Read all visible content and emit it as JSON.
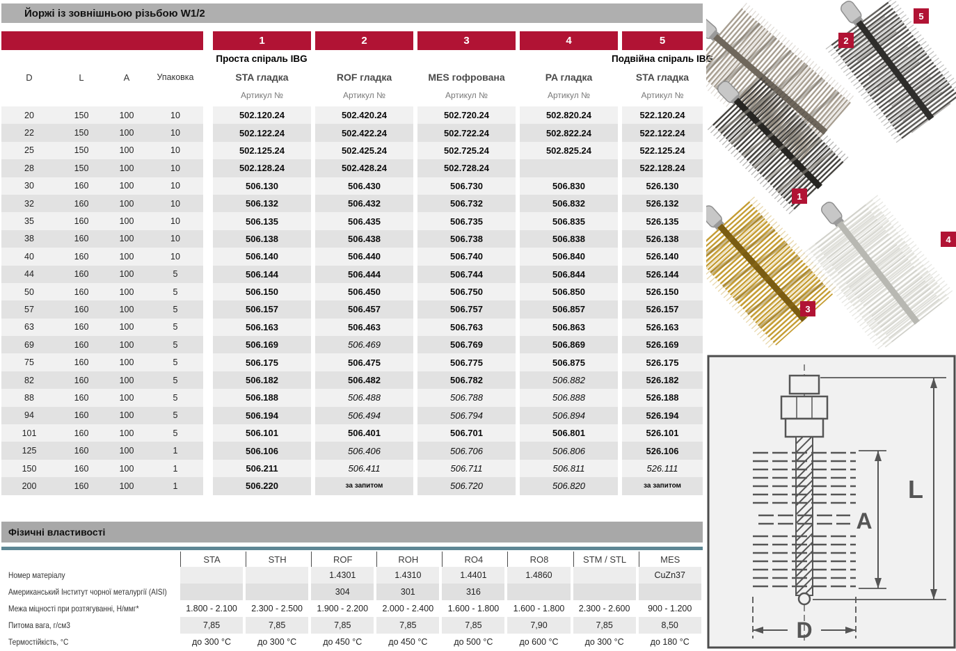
{
  "title": "Йоржі із зовнішньою різьбою W1/2",
  "colors": {
    "accent_red": "#B11334",
    "title_bar_gray": "#AFAFAF",
    "teal_line": "#5E8794"
  },
  "main_table": {
    "left_headers": [
      "D",
      "L",
      "A",
      "Упаковка"
    ],
    "columns": [
      {
        "num": "1",
        "group": "Проста спіраль IBG",
        "name": "STA гладка",
        "sub": "Артикул №"
      },
      {
        "num": "2",
        "group": "",
        "name": "ROF гладка",
        "sub": "Артикул №"
      },
      {
        "num": "3",
        "group": "",
        "name": "MES гофрована",
        "sub": "Артикул №"
      },
      {
        "num": "4",
        "group": "",
        "name": "PA гладка",
        "sub": "Артикул №"
      },
      {
        "num": "5",
        "group": "Подвійна спіраль IBG",
        "name": "STA гладка",
        "sub": "Артикул №"
      }
    ],
    "rows": [
      {
        "d": "20",
        "l": "150",
        "a": "100",
        "pk": "10",
        "cells": [
          {
            "v": "502.120.24",
            "f": "b"
          },
          {
            "v": "502.420.24",
            "f": "b"
          },
          {
            "v": "502.720.24",
            "f": "b"
          },
          {
            "v": "502.820.24",
            "f": "b"
          },
          {
            "v": "522.120.24",
            "f": "b"
          }
        ]
      },
      {
        "d": "22",
        "l": "150",
        "a": "100",
        "pk": "10",
        "cells": [
          {
            "v": "502.122.24",
            "f": "b"
          },
          {
            "v": "502.422.24",
            "f": "b"
          },
          {
            "v": "502.722.24",
            "f": "b"
          },
          {
            "v": "502.822.24",
            "f": "b"
          },
          {
            "v": "522.122.24",
            "f": "b"
          }
        ]
      },
      {
        "d": "25",
        "l": "150",
        "a": "100",
        "pk": "10",
        "cells": [
          {
            "v": "502.125.24",
            "f": "b"
          },
          {
            "v": "502.425.24",
            "f": "b"
          },
          {
            "v": "502.725.24",
            "f": "b"
          },
          {
            "v": "502.825.24",
            "f": "b"
          },
          {
            "v": "522.125.24",
            "f": "b"
          }
        ]
      },
      {
        "d": "28",
        "l": "150",
        "a": "100",
        "pk": "10",
        "cells": [
          {
            "v": "502.128.24",
            "f": "b"
          },
          {
            "v": "502.428.24",
            "f": "b"
          },
          {
            "v": "502.728.24",
            "f": "b"
          },
          {
            "v": "",
            "f": ""
          },
          {
            "v": "522.128.24",
            "f": "b"
          }
        ]
      },
      {
        "d": "30",
        "l": "160",
        "a": "100",
        "pk": "10",
        "cells": [
          {
            "v": "506.130",
            "f": "b"
          },
          {
            "v": "506.430",
            "f": "b"
          },
          {
            "v": "506.730",
            "f": "b"
          },
          {
            "v": "506.830",
            "f": "b"
          },
          {
            "v": "526.130",
            "f": "b"
          }
        ]
      },
      {
        "d": "32",
        "l": "160",
        "a": "100",
        "pk": "10",
        "cells": [
          {
            "v": "506.132",
            "f": "b"
          },
          {
            "v": "506.432",
            "f": "b"
          },
          {
            "v": "506.732",
            "f": "b"
          },
          {
            "v": "506.832",
            "f": "b"
          },
          {
            "v": "526.132",
            "f": "b"
          }
        ]
      },
      {
        "d": "35",
        "l": "160",
        "a": "100",
        "pk": "10",
        "cells": [
          {
            "v": "506.135",
            "f": "b"
          },
          {
            "v": "506.435",
            "f": "b"
          },
          {
            "v": "506.735",
            "f": "b"
          },
          {
            "v": "506.835",
            "f": "b"
          },
          {
            "v": "526.135",
            "f": "b"
          }
        ]
      },
      {
        "d": "38",
        "l": "160",
        "a": "100",
        "pk": "10",
        "cells": [
          {
            "v": "506.138",
            "f": "b"
          },
          {
            "v": "506.438",
            "f": "b"
          },
          {
            "v": "506.738",
            "f": "b"
          },
          {
            "v": "506.838",
            "f": "b"
          },
          {
            "v": "526.138",
            "f": "b"
          }
        ]
      },
      {
        "d": "40",
        "l": "160",
        "a": "100",
        "pk": "10",
        "cells": [
          {
            "v": "506.140",
            "f": "b"
          },
          {
            "v": "506.440",
            "f": "b"
          },
          {
            "v": "506.740",
            "f": "b"
          },
          {
            "v": "506.840",
            "f": "b"
          },
          {
            "v": "526.140",
            "f": "b"
          }
        ]
      },
      {
        "d": "44",
        "l": "160",
        "a": "100",
        "pk": "5",
        "cells": [
          {
            "v": "506.144",
            "f": "b"
          },
          {
            "v": "506.444",
            "f": "b"
          },
          {
            "v": "506.744",
            "f": "b"
          },
          {
            "v": "506.844",
            "f": "b"
          },
          {
            "v": "526.144",
            "f": "b"
          }
        ]
      },
      {
        "d": "50",
        "l": "160",
        "a": "100",
        "pk": "5",
        "cells": [
          {
            "v": "506.150",
            "f": "b"
          },
          {
            "v": "506.450",
            "f": "b"
          },
          {
            "v": "506.750",
            "f": "b"
          },
          {
            "v": "506.850",
            "f": "b"
          },
          {
            "v": "526.150",
            "f": "b"
          }
        ]
      },
      {
        "d": "57",
        "l": "160",
        "a": "100",
        "pk": "5",
        "cells": [
          {
            "v": "506.157",
            "f": "b"
          },
          {
            "v": "506.457",
            "f": "b"
          },
          {
            "v": "506.757",
            "f": "b"
          },
          {
            "v": "506.857",
            "f": "b"
          },
          {
            "v": "526.157",
            "f": "b"
          }
        ]
      },
      {
        "d": "63",
        "l": "160",
        "a": "100",
        "pk": "5",
        "cells": [
          {
            "v": "506.163",
            "f": "b"
          },
          {
            "v": "506.463",
            "f": "b"
          },
          {
            "v": "506.763",
            "f": "b"
          },
          {
            "v": "506.863",
            "f": "b"
          },
          {
            "v": "526.163",
            "f": "b"
          }
        ]
      },
      {
        "d": "69",
        "l": "160",
        "a": "100",
        "pk": "5",
        "cells": [
          {
            "v": "506.169",
            "f": "b"
          },
          {
            "v": "506.469",
            "f": "i"
          },
          {
            "v": "506.769",
            "f": "b"
          },
          {
            "v": "506.869",
            "f": "b"
          },
          {
            "v": "526.169",
            "f": "b"
          }
        ]
      },
      {
        "d": "75",
        "l": "160",
        "a": "100",
        "pk": "5",
        "cells": [
          {
            "v": "506.175",
            "f": "b"
          },
          {
            "v": "506.475",
            "f": "b"
          },
          {
            "v": "506.775",
            "f": "b"
          },
          {
            "v": "506.875",
            "f": "b"
          },
          {
            "v": "526.175",
            "f": "b"
          }
        ]
      },
      {
        "d": "82",
        "l": "160",
        "a": "100",
        "pk": "5",
        "cells": [
          {
            "v": "506.182",
            "f": "b"
          },
          {
            "v": "506.482",
            "f": "b"
          },
          {
            "v": "506.782",
            "f": "b"
          },
          {
            "v": "506.882",
            "f": "i"
          },
          {
            "v": "526.182",
            "f": "b"
          }
        ]
      },
      {
        "d": "88",
        "l": "160",
        "a": "100",
        "pk": "5",
        "cells": [
          {
            "v": "506.188",
            "f": "b"
          },
          {
            "v": "506.488",
            "f": "i"
          },
          {
            "v": "506.788",
            "f": "i"
          },
          {
            "v": "506.888",
            "f": "i"
          },
          {
            "v": "526.188",
            "f": "b"
          }
        ]
      },
      {
        "d": "94",
        "l": "160",
        "a": "100",
        "pk": "5",
        "cells": [
          {
            "v": "506.194",
            "f": "b"
          },
          {
            "v": "506.494",
            "f": "i"
          },
          {
            "v": "506.794",
            "f": "i"
          },
          {
            "v": "506.894",
            "f": "i"
          },
          {
            "v": "526.194",
            "f": "b"
          }
        ]
      },
      {
        "d": "101",
        "l": "160",
        "a": "100",
        "pk": "5",
        "cells": [
          {
            "v": "506.101",
            "f": "b"
          },
          {
            "v": "506.401",
            "f": "b"
          },
          {
            "v": "506.701",
            "f": "b"
          },
          {
            "v": "506.801",
            "f": "b"
          },
          {
            "v": "526.101",
            "f": "b"
          }
        ]
      },
      {
        "d": "125",
        "l": "160",
        "a": "100",
        "pk": "1",
        "cells": [
          {
            "v": "506.106",
            "f": "b"
          },
          {
            "v": "506.406",
            "f": "i"
          },
          {
            "v": "506.706",
            "f": "i"
          },
          {
            "v": "506.806",
            "f": "i"
          },
          {
            "v": "526.106",
            "f": "b"
          }
        ]
      },
      {
        "d": "150",
        "l": "160",
        "a": "100",
        "pk": "1",
        "cells": [
          {
            "v": "506.211",
            "f": "b"
          },
          {
            "v": "506.411",
            "f": "i"
          },
          {
            "v": "506.711",
            "f": "i"
          },
          {
            "v": "506.811",
            "f": "i"
          },
          {
            "v": "526.111",
            "f": "i"
          }
        ]
      },
      {
        "d": "200",
        "l": "160",
        "a": "100",
        "pk": "1",
        "cells": [
          {
            "v": "506.220",
            "f": "b"
          },
          {
            "v": "за запитом",
            "f": "q"
          },
          {
            "v": "506.720",
            "f": "i"
          },
          {
            "v": "506.820",
            "f": "i"
          },
          {
            "v": "за запитом",
            "f": "q"
          }
        ]
      }
    ]
  },
  "section_physical": {
    "title": "Фізичні властивості"
  },
  "props_table": {
    "headers": [
      "STA",
      "STH",
      "ROF",
      "ROH",
      "RO4",
      "RO8",
      "STM / STL",
      "MES"
    ],
    "rows": [
      {
        "label": "Номер матеріалу",
        "values": [
          "",
          "",
          "1.4301",
          "1.4310",
          "1.4401",
          "1.4860",
          "",
          "CuZn37"
        ]
      },
      {
        "label": "Американський Інститут чорної металургії (AISI)",
        "values": [
          "",
          "",
          "304",
          "301",
          "316",
          "",
          "",
          ""
        ]
      },
      {
        "label": "Межа міцності при розтягуванні, Н/ммг*",
        "values": [
          "1.800 - 2.100",
          "2.300 - 2.500",
          "1.900 - 2.200",
          "2.000 - 2.400",
          "1.600 - 1.800",
          "1.600 - 1.800",
          "2.300 - 2.600",
          "900 - 1.200"
        ]
      },
      {
        "label": "Питома вага, г/см3",
        "values": [
          "7,85",
          "7,85",
          "7,85",
          "7,85",
          "7,85",
          "7,90",
          "7,85",
          "8,50"
        ]
      },
      {
        "label": "Термостійкість, °С",
        "values": [
          "до 300 °C",
          "до 300 °C",
          "до 450 °C",
          "до 450 °C",
          "до 500 °C",
          "до 600 °C",
          "до 300 °C",
          "до 180 °C"
        ]
      }
    ]
  },
  "photos": {
    "tags": [
      "1",
      "2",
      "3",
      "4",
      "5"
    ]
  },
  "diagram": {
    "labels": {
      "total_length": "L",
      "brush_length": "A",
      "diameter": "D"
    }
  }
}
